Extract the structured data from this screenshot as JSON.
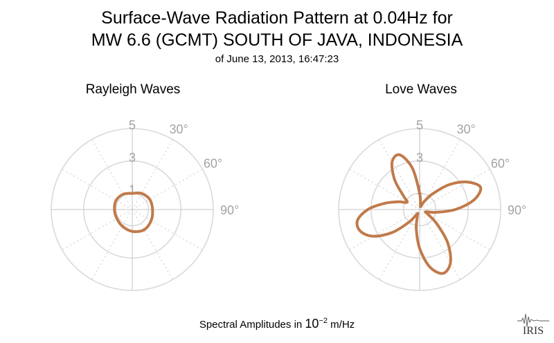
{
  "title": {
    "line1": "Surface-Wave Radiation Pattern at 0.04Hz for",
    "line2": "MW 6.6 (GCMT) SOUTH OF JAVA, INDONESIA",
    "subtitle": "of June 13, 2013, 16:47:23"
  },
  "footer": {
    "prefix": "Spectral Amplitudes in ",
    "base": "10",
    "exponent": "−2",
    "unit": " m/Hz"
  },
  "logo": {
    "text": "IRIS"
  },
  "colors": {
    "curve": "#c07a4a",
    "grid": "#d9d9d9",
    "label": "#a3a3a3"
  },
  "chart_data": [
    {
      "type": "polar-line",
      "title": "Rayleigh Waves",
      "radial_ticks": [
        "1",
        "3",
        "5"
      ],
      "radial_values": [
        1,
        3,
        5
      ],
      "rmax": 5,
      "angle_ticks": [
        "30°",
        "60°",
        "90°"
      ],
      "angle_values": [
        30,
        60,
        90
      ],
      "grid_step_deg": 30,
      "series": [
        {
          "theta_deg": [
            0,
            30,
            60,
            90,
            120,
            150,
            180,
            210,
            240,
            270,
            300,
            330
          ],
          "r": [
            1.0,
            1.15,
            1.25,
            1.25,
            1.35,
            1.45,
            1.35,
            1.2,
            1.1,
            1.1,
            1.15,
            1.1
          ]
        }
      ]
    },
    {
      "type": "polar-line",
      "title": "Love Waves",
      "radial_ticks": [
        "1",
        "3",
        "5"
      ],
      "radial_values": [
        1,
        3,
        5
      ],
      "rmax": 5,
      "angle_ticks": [
        "30°",
        "60°",
        "90°"
      ],
      "angle_values": [
        30,
        60,
        90
      ],
      "grid_step_deg": 30,
      "series": [
        {
          "theta_deg": [
            0,
            10,
            20,
            30,
            40,
            50,
            60,
            70,
            80,
            90,
            100,
            110,
            120,
            130,
            140,
            150,
            160,
            170,
            180,
            190,
            200,
            210,
            220,
            230,
            240,
            250,
            260,
            270,
            280,
            290,
            300,
            310,
            320,
            330,
            340,
            350
          ],
          "r": [
            1.0,
            0.3,
            0.2,
            0.6,
            1.3,
            2.4,
            3.4,
            4.0,
            3.4,
            2.2,
            1.0,
            0.4,
            0.6,
            1.4,
            2.7,
            3.8,
            4.2,
            3.6,
            2.4,
            1.2,
            0.4,
            0.3,
            1.0,
            2.2,
            3.3,
            3.9,
            3.9,
            3.2,
            2.2,
            1.4,
            0.9,
            1.3,
            2.4,
            3.4,
            3.6,
            2.6
          ]
        }
      ]
    }
  ]
}
